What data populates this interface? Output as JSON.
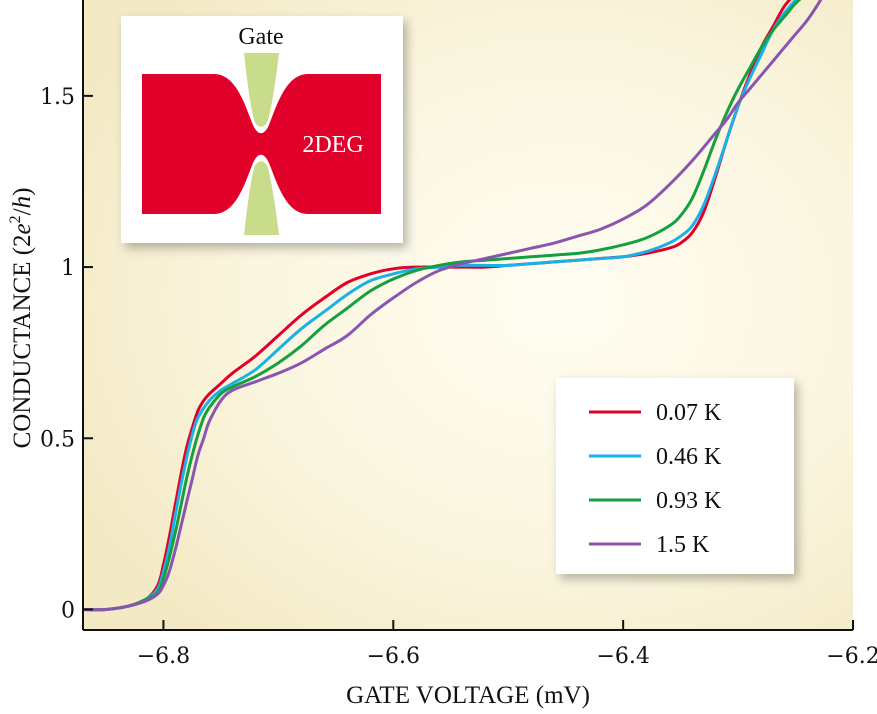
{
  "chart_data": {
    "type": "line",
    "title": "",
    "xlabel": "GATE VOLTAGE (mV)",
    "ylabel_parts": {
      "text": "CONDUCTANCE (2",
      "e": "e",
      "sup": "2",
      "slash": "/",
      "h": "h",
      "close": ")"
    },
    "xlim": [
      -6.87,
      -6.2
    ],
    "ylim": [
      -0.06,
      1.78
    ],
    "xticks": [
      -6.8,
      -6.6,
      -6.4,
      -6.2
    ],
    "xtick_labels": [
      "−6.8",
      "−6.6",
      "−6.4",
      "−6.2"
    ],
    "yticks": [
      0,
      0.5,
      1,
      1.5
    ],
    "ytick_labels": [
      "0",
      "0.5",
      "1",
      "1.5"
    ],
    "grid": false,
    "legend_position": "lower-right",
    "series": [
      {
        "name": "0.07 K",
        "color": "#e0002a",
        "x": [
          -6.87,
          -6.85,
          -6.83,
          -6.815,
          -6.805,
          -6.8,
          -6.795,
          -6.79,
          -6.785,
          -6.78,
          -6.775,
          -6.77,
          -6.765,
          -6.76,
          -6.75,
          -6.74,
          -6.72,
          -6.7,
          -6.68,
          -6.66,
          -6.64,
          -6.62,
          -6.6,
          -6.58,
          -6.56,
          -6.54,
          -6.52,
          -6.5,
          -6.48,
          -6.46,
          -6.44,
          -6.42,
          -6.4,
          -6.38,
          -6.36,
          -6.35,
          -6.34,
          -6.33,
          -6.32,
          -6.31,
          -6.3,
          -6.29,
          -6.28,
          -6.27,
          -6.26,
          -6.25
        ],
        "y": [
          0.0,
          0.0,
          0.01,
          0.03,
          0.07,
          0.13,
          0.21,
          0.3,
          0.39,
          0.47,
          0.53,
          0.58,
          0.61,
          0.63,
          0.66,
          0.69,
          0.74,
          0.8,
          0.86,
          0.91,
          0.955,
          0.98,
          0.995,
          1.0,
          1.0,
          1.0,
          1.0,
          1.005,
          1.01,
          1.015,
          1.02,
          1.025,
          1.03,
          1.04,
          1.055,
          1.07,
          1.1,
          1.16,
          1.26,
          1.37,
          1.47,
          1.56,
          1.64,
          1.7,
          1.76,
          1.8
        ]
      },
      {
        "name": "0.46 K",
        "color": "#1ab0e8",
        "x": [
          -6.87,
          -6.85,
          -6.83,
          -6.815,
          -6.805,
          -6.8,
          -6.795,
          -6.79,
          -6.785,
          -6.78,
          -6.775,
          -6.77,
          -6.76,
          -6.75,
          -6.74,
          -6.72,
          -6.7,
          -6.68,
          -6.66,
          -6.64,
          -6.62,
          -6.6,
          -6.58,
          -6.56,
          -6.54,
          -6.52,
          -6.5,
          -6.48,
          -6.46,
          -6.44,
          -6.42,
          -6.4,
          -6.38,
          -6.36,
          -6.35,
          -6.34,
          -6.33,
          -6.32,
          -6.31,
          -6.3,
          -6.29,
          -6.28,
          -6.27,
          -6.26,
          -6.25,
          -6.245
        ],
        "y": [
          0.0,
          0.0,
          0.01,
          0.03,
          0.06,
          0.11,
          0.18,
          0.27,
          0.36,
          0.44,
          0.51,
          0.56,
          0.61,
          0.64,
          0.66,
          0.7,
          0.76,
          0.82,
          0.87,
          0.92,
          0.96,
          0.98,
          0.995,
          1.0,
          1.005,
          1.005,
          1.005,
          1.01,
          1.015,
          1.02,
          1.025,
          1.03,
          1.045,
          1.07,
          1.09,
          1.12,
          1.18,
          1.27,
          1.37,
          1.47,
          1.55,
          1.62,
          1.69,
          1.74,
          1.78,
          1.8
        ]
      },
      {
        "name": "0.93 K",
        "color": "#15a040",
        "x": [
          -6.87,
          -6.85,
          -6.83,
          -6.815,
          -6.805,
          -6.8,
          -6.795,
          -6.79,
          -6.785,
          -6.78,
          -6.775,
          -6.77,
          -6.765,
          -6.76,
          -6.75,
          -6.74,
          -6.72,
          -6.7,
          -6.68,
          -6.66,
          -6.64,
          -6.62,
          -6.6,
          -6.58,
          -6.56,
          -6.54,
          -6.52,
          -6.5,
          -6.48,
          -6.46,
          -6.44,
          -6.42,
          -6.4,
          -6.38,
          -6.36,
          -6.35,
          -6.34,
          -6.33,
          -6.32,
          -6.31,
          -6.3,
          -6.29,
          -6.28,
          -6.27,
          -6.26,
          -6.25,
          -6.24
        ],
        "y": [
          0.0,
          0.0,
          0.01,
          0.03,
          0.05,
          0.09,
          0.15,
          0.22,
          0.3,
          0.38,
          0.45,
          0.51,
          0.56,
          0.59,
          0.63,
          0.65,
          0.68,
          0.72,
          0.77,
          0.83,
          0.88,
          0.93,
          0.965,
          0.99,
          1.005,
          1.015,
          1.02,
          1.025,
          1.03,
          1.035,
          1.04,
          1.05,
          1.065,
          1.085,
          1.12,
          1.15,
          1.2,
          1.28,
          1.37,
          1.45,
          1.52,
          1.58,
          1.64,
          1.69,
          1.73,
          1.77,
          1.8
        ]
      },
      {
        "name": "1.5 K",
        "color": "#8a55b0",
        "x": [
          -6.87,
          -6.85,
          -6.83,
          -6.815,
          -6.805,
          -6.8,
          -6.795,
          -6.79,
          -6.785,
          -6.78,
          -6.775,
          -6.77,
          -6.765,
          -6.76,
          -6.75,
          -6.74,
          -6.72,
          -6.7,
          -6.68,
          -6.66,
          -6.64,
          -6.62,
          -6.6,
          -6.58,
          -6.56,
          -6.54,
          -6.52,
          -6.5,
          -6.48,
          -6.46,
          -6.44,
          -6.42,
          -6.4,
          -6.38,
          -6.36,
          -6.34,
          -6.32,
          -6.31,
          -6.3,
          -6.29,
          -6.28,
          -6.27,
          -6.26,
          -6.25,
          -6.24,
          -6.23,
          -6.225
        ],
        "y": [
          0.0,
          0.0,
          0.01,
          0.025,
          0.045,
          0.07,
          0.11,
          0.17,
          0.24,
          0.31,
          0.38,
          0.45,
          0.5,
          0.55,
          0.61,
          0.64,
          0.665,
          0.69,
          0.72,
          0.76,
          0.8,
          0.86,
          0.91,
          0.955,
          0.99,
          1.01,
          1.025,
          1.04,
          1.055,
          1.07,
          1.09,
          1.11,
          1.14,
          1.18,
          1.24,
          1.31,
          1.39,
          1.43,
          1.48,
          1.52,
          1.56,
          1.6,
          1.64,
          1.68,
          1.72,
          1.77,
          1.8
        ]
      }
    ]
  },
  "inset": {
    "gate_label": "Gate",
    "channel_label": "2DEG",
    "gate_color": "#c8dc8c",
    "channel_color": "#e0002a"
  },
  "colors": {
    "background_glow": "#f6edc8",
    "axis": "#111111"
  }
}
